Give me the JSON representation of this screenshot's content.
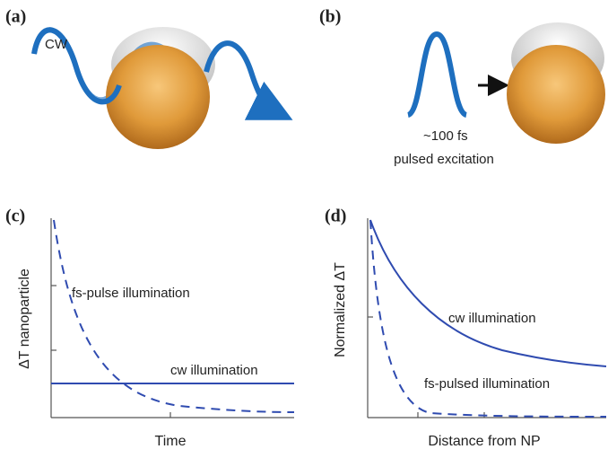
{
  "panels": [
    {
      "label": "(a)",
      "texts": [
        "CW"
      ]
    },
    {
      "label": "(b)",
      "texts": [
        "~100 fs",
        "pulsed excitation"
      ]
    },
    {
      "label": "(c)",
      "y_axis_label": "ΔT nanoparticle",
      "x_axis_label": "Time",
      "curves": [
        "fs-pulse illumination",
        "cw illumination"
      ]
    },
    {
      "label": "(d)",
      "y_axis_label": "Normalized ΔT",
      "x_axis_label": "Distance from NP",
      "curves": [
        "cw illumination",
        "fs-pulsed illumination"
      ]
    }
  ]
}
